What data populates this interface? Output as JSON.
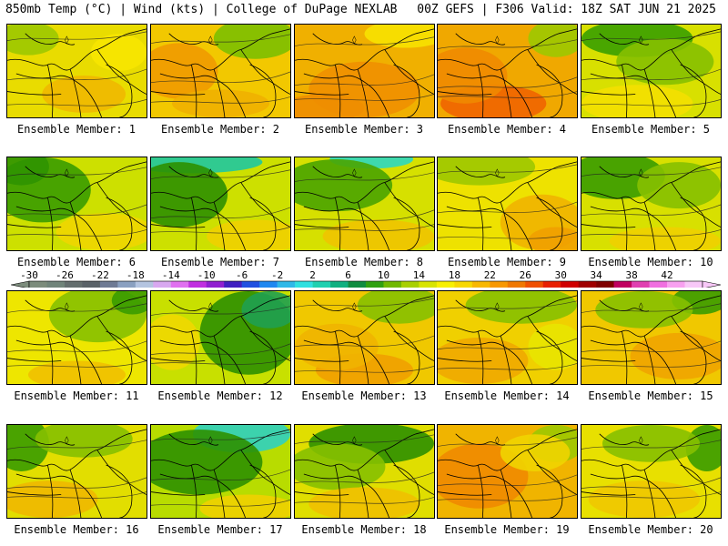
{
  "header": {
    "left": "850mb Temp (°C) | Wind (kts) | College of DuPage NEXLAB",
    "right": "00Z GEFS | F306 Valid: 18Z SAT JUN 21 2025"
  },
  "members": [
    {
      "label": "Ensemble Member: 1",
      "base": "#e9dc00",
      "blobs": [
        [
          "#9cc800",
          0.15,
          0.15,
          0.22,
          0.18
        ],
        [
          "#f0b800",
          0.55,
          0.75,
          0.3,
          0.2
        ],
        [
          "#f7e600",
          0.8,
          0.3,
          0.2,
          0.2
        ]
      ]
    },
    {
      "label": "Ensemble Member: 2",
      "base": "#f2c800",
      "blobs": [
        [
          "#f09a00",
          0.2,
          0.5,
          0.28,
          0.3
        ],
        [
          "#7cbf00",
          0.75,
          0.15,
          0.3,
          0.22
        ],
        [
          "#f0b000",
          0.5,
          0.85,
          0.35,
          0.15
        ]
      ]
    },
    {
      "label": "Ensemble Member: 3",
      "base": "#f0b000",
      "blobs": [
        [
          "#f09000",
          0.5,
          0.7,
          0.4,
          0.3
        ],
        [
          "#f7e200",
          0.8,
          0.1,
          0.3,
          0.15
        ],
        [
          "#ee8e00",
          0.2,
          0.9,
          0.3,
          0.15
        ]
      ]
    },
    {
      "label": "Ensemble Member: 4",
      "base": "#f0a800",
      "blobs": [
        [
          "#f06400",
          0.4,
          0.85,
          0.38,
          0.2
        ],
        [
          "#f08a00",
          0.2,
          0.55,
          0.3,
          0.3
        ],
        [
          "#9cc800",
          0.85,
          0.15,
          0.2,
          0.2
        ]
      ]
    },
    {
      "label": "Ensemble Member: 5",
      "base": "#d8e000",
      "blobs": [
        [
          "#3aa000",
          0.4,
          0.15,
          0.4,
          0.2
        ],
        [
          "#86c000",
          0.6,
          0.4,
          0.35,
          0.25
        ],
        [
          "#f4e000",
          0.4,
          0.85,
          0.4,
          0.2
        ]
      ]
    },
    {
      "label": "Ensemble Member: 6",
      "base": "#cde000",
      "blobs": [
        [
          "#3a9c00",
          0.25,
          0.35,
          0.35,
          0.35
        ],
        [
          "#2f9400",
          0.1,
          0.1,
          0.2,
          0.2
        ],
        [
          "#f0d600",
          0.7,
          0.8,
          0.35,
          0.2
        ]
      ]
    },
    {
      "label": "Ensemble Member: 7",
      "base": "#cde000",
      "blobs": [
        [
          "#1fc8a0",
          0.3,
          0.05,
          0.5,
          0.12
        ],
        [
          "#2e9000",
          0.2,
          0.4,
          0.35,
          0.35
        ],
        [
          "#f0d000",
          0.75,
          0.85,
          0.35,
          0.18
        ]
      ]
    },
    {
      "label": "Ensemble Member: 8",
      "base": "#d6e000",
      "blobs": [
        [
          "#2ed8c0",
          0.55,
          0.02,
          0.3,
          0.1
        ],
        [
          "#4aa400",
          0.3,
          0.3,
          0.4,
          0.28
        ],
        [
          "#f0c400",
          0.6,
          0.85,
          0.4,
          0.18
        ]
      ]
    },
    {
      "label": "Ensemble Member: 9",
      "base": "#eee200",
      "blobs": [
        [
          "#9cc800",
          0.3,
          0.1,
          0.4,
          0.2
        ],
        [
          "#f0b400",
          0.75,
          0.7,
          0.3,
          0.3
        ],
        [
          "#f0a000",
          0.85,
          0.9,
          0.2,
          0.15
        ]
      ]
    },
    {
      "label": "Ensemble Member: 10",
      "base": "#d8e000",
      "blobs": [
        [
          "#3a9c00",
          0.25,
          0.2,
          0.35,
          0.25
        ],
        [
          "#86c000",
          0.7,
          0.3,
          0.3,
          0.25
        ],
        [
          "#f0d000",
          0.6,
          0.9,
          0.4,
          0.15
        ]
      ]
    },
    {
      "label": "Ensemble Member: 11",
      "base": "#eee600",
      "blobs": [
        [
          "#86c000",
          0.65,
          0.25,
          0.35,
          0.3
        ],
        [
          "#3a9c00",
          0.9,
          0.1,
          0.15,
          0.15
        ],
        [
          "#f0c000",
          0.5,
          0.9,
          0.35,
          0.15
        ]
      ]
    },
    {
      "label": "Ensemble Member: 12",
      "base": "#c8e000",
      "blobs": [
        [
          "#2e9000",
          0.7,
          0.45,
          0.35,
          0.45
        ],
        [
          "#1fa050",
          0.85,
          0.2,
          0.2,
          0.2
        ],
        [
          "#f0d800",
          0.15,
          0.55,
          0.2,
          0.3
        ]
      ]
    },
    {
      "label": "Ensemble Member: 13",
      "base": "#f0c800",
      "blobs": [
        [
          "#86c000",
          0.75,
          0.15,
          0.3,
          0.2
        ],
        [
          "#f0a000",
          0.5,
          0.85,
          0.35,
          0.18
        ],
        [
          "#f0b400",
          0.3,
          0.6,
          0.3,
          0.25
        ]
      ]
    },
    {
      "label": "Ensemble Member: 14",
      "base": "#f0d000",
      "blobs": [
        [
          "#86c000",
          0.6,
          0.15,
          0.4,
          0.2
        ],
        [
          "#f0a800",
          0.3,
          0.75,
          0.35,
          0.25
        ],
        [
          "#e8e400",
          0.85,
          0.6,
          0.2,
          0.25
        ]
      ]
    },
    {
      "label": "Ensemble Member: 15",
      "base": "#f0c800",
      "blobs": [
        [
          "#3a9c00",
          0.85,
          0.1,
          0.2,
          0.15
        ],
        [
          "#86c000",
          0.45,
          0.2,
          0.35,
          0.2
        ],
        [
          "#f0a400",
          0.7,
          0.7,
          0.35,
          0.25
        ]
      ]
    },
    {
      "label": "Ensemble Member: 16",
      "base": "#e2de00",
      "blobs": [
        [
          "#3a9c00",
          0.1,
          0.2,
          0.2,
          0.3
        ],
        [
          "#86c000",
          0.55,
          0.15,
          0.35,
          0.2
        ],
        [
          "#f0b800",
          0.3,
          0.8,
          0.35,
          0.2
        ]
      ]
    },
    {
      "label": "Ensemble Member: 17",
      "base": "#b8dc00",
      "blobs": [
        [
          "#2fd0c0",
          0.65,
          0.1,
          0.35,
          0.2
        ],
        [
          "#2e9000",
          0.35,
          0.4,
          0.45,
          0.35
        ],
        [
          "#f0d000",
          0.7,
          0.9,
          0.35,
          0.15
        ]
      ]
    },
    {
      "label": "Ensemble Member: 18",
      "base": "#e0de00",
      "blobs": [
        [
          "#2e9000",
          0.55,
          0.2,
          0.45,
          0.22
        ],
        [
          "#86c000",
          0.3,
          0.45,
          0.35,
          0.25
        ],
        [
          "#f0c000",
          0.5,
          0.85,
          0.4,
          0.18
        ]
      ]
    },
    {
      "label": "Ensemble Member: 19",
      "base": "#f0b400",
      "blobs": [
        [
          "#f08a00",
          0.3,
          0.55,
          0.35,
          0.35
        ],
        [
          "#9cc800",
          0.85,
          0.2,
          0.2,
          0.2
        ],
        [
          "#f0d400",
          0.7,
          0.3,
          0.25,
          0.2
        ]
      ]
    },
    {
      "label": "Ensemble Member: 20",
      "base": "#e8e000",
      "blobs": [
        [
          "#3a9c00",
          0.9,
          0.25,
          0.15,
          0.25
        ],
        [
          "#86c000",
          0.5,
          0.2,
          0.35,
          0.2
        ],
        [
          "#f0c800",
          0.45,
          0.8,
          0.4,
          0.2
        ]
      ]
    }
  ],
  "colorbar": {
    "colors": [
      "#7c8c7c",
      "#70847a",
      "#646e6e",
      "#5a6268",
      "#6e7a94",
      "#8aa0c0",
      "#b4c4e0",
      "#d8a8f0",
      "#e070f0",
      "#c030e0",
      "#9020d0",
      "#4020c0",
      "#2050e0",
      "#2088f0",
      "#30b8e8",
      "#30e0e0",
      "#20d0b0",
      "#10b080",
      "#108c40",
      "#30a010",
      "#70b800",
      "#a8d000",
      "#d8e400",
      "#f8f000",
      "#f8d800",
      "#f8b800",
      "#f89800",
      "#f07800",
      "#f05000",
      "#e82000",
      "#d00000",
      "#a00000",
      "#800000",
      "#c00060",
      "#e040b0",
      "#f070e0",
      "#f8a0f0",
      "#f8c8f8"
    ],
    "ticks": [
      "-30",
      "-26",
      "-22",
      "-18",
      "-14",
      "-10",
      "-6",
      "-2",
      "2",
      "6",
      "10",
      "14",
      "18",
      "22",
      "26",
      "30",
      "34",
      "38",
      "42"
    ]
  }
}
